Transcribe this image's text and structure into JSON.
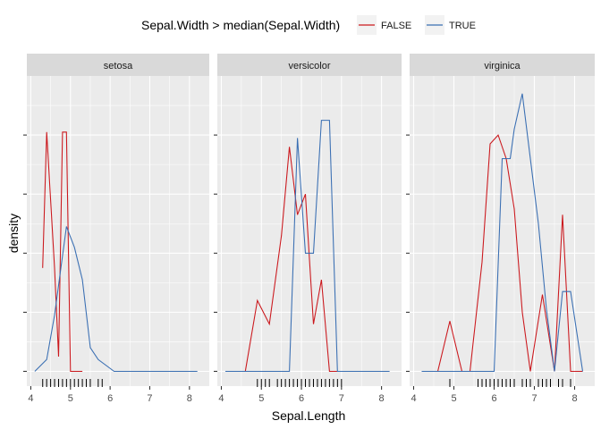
{
  "chart_data": {
    "type": "line",
    "xlabel": "Sepal.Length",
    "ylabel": "density",
    "xlim": [
      3.9,
      8.5
    ],
    "ylim": [
      -0.05,
      1.0
    ],
    "x_ticks": [
      4,
      5,
      6,
      7,
      8
    ],
    "y_ticks": [
      0,
      0.2,
      0.4,
      0.6,
      0.8
    ],
    "grid": true,
    "legend": {
      "title": "Sepal.Width > median(Sepal.Width)",
      "placement": "top",
      "entries": [
        {
          "label": "FALSE",
          "color": "#cb181d"
        },
        {
          "label": "TRUE",
          "color": "#3a6fb3"
        }
      ]
    },
    "panels": [
      {
        "strip": "setosa",
        "series": [
          {
            "name": "FALSE",
            "color": "#cb181d",
            "x": [
              4.3,
              4.4,
              4.6,
              4.7,
              4.8,
              4.9,
              5.0,
              5.1,
              5.2,
              5.3
            ],
            "y": [
              0.35,
              0.81,
              0.35,
              0.05,
              0.81,
              0.81,
              0.0,
              0.0,
              0.0,
              0.0
            ]
          },
          {
            "name": "TRUE",
            "color": "#3a6fb3",
            "x": [
              4.1,
              4.4,
              4.6,
              4.9,
              5.1,
              5.3,
              5.5,
              5.7,
              6.1,
              6.9,
              8.2
            ],
            "y": [
              0.0,
              0.04,
              0.19,
              0.49,
              0.42,
              0.31,
              0.08,
              0.04,
              0.0,
              0.0,
              0.0
            ]
          }
        ],
        "rug": [
          4.3,
          4.4,
          4.5,
          4.6,
          4.7,
          4.8,
          4.9,
          5.0,
          5.1,
          5.2,
          5.3,
          5.4,
          5.5,
          5.7,
          5.8
        ]
      },
      {
        "strip": "versicolor",
        "series": [
          {
            "name": "FALSE",
            "color": "#cb181d",
            "x": [
              4.6,
              4.9,
              5.2,
              5.5,
              5.7,
              5.9,
              6.1,
              6.3,
              6.5,
              6.7,
              6.9,
              7.1
            ],
            "y": [
              0.0,
              0.24,
              0.16,
              0.46,
              0.76,
              0.53,
              0.6,
              0.16,
              0.31,
              0.0,
              0.0,
              0.0
            ]
          },
          {
            "name": "TRUE",
            "color": "#3a6fb3",
            "x": [
              4.1,
              5.7,
              5.9,
              6.1,
              6.3,
              6.5,
              6.7,
              6.9,
              7.2,
              8.2
            ],
            "y": [
              0.0,
              0.0,
              0.79,
              0.4,
              0.4,
              0.85,
              0.85,
              0.0,
              0.0,
              0.0
            ]
          }
        ],
        "rug": [
          4.9,
          5.0,
          5.1,
          5.2,
          5.4,
          5.5,
          5.6,
          5.7,
          5.8,
          5.9,
          6.0,
          6.1,
          6.2,
          6.3,
          6.4,
          6.5,
          6.6,
          6.7,
          6.8,
          6.9,
          7.0
        ]
      },
      {
        "strip": "virginica",
        "series": [
          {
            "name": "FALSE",
            "color": "#cb181d",
            "x": [
              4.6,
              4.9,
              5.2,
              5.4,
              5.7,
              5.9,
              6.1,
              6.3,
              6.5,
              6.7,
              6.9,
              7.2,
              7.5,
              7.7,
              7.9,
              8.2
            ],
            "y": [
              0.0,
              0.17,
              0.0,
              0.0,
              0.37,
              0.77,
              0.8,
              0.72,
              0.55,
              0.2,
              0.0,
              0.26,
              0.0,
              0.53,
              0.0,
              0.0
            ],
            "note": ""
          },
          {
            "name": "TRUE",
            "color": "#3a6fb3",
            "x": [
              4.2,
              5.8,
              6.0,
              6.2,
              6.4,
              6.5,
              6.7,
              6.9,
              7.1,
              7.3,
              7.5,
              7.7,
              7.9,
              8.2
            ],
            "y": [
              0.0,
              0.0,
              0.0,
              0.72,
              0.72,
              0.82,
              0.94,
              0.72,
              0.5,
              0.21,
              0.0,
              0.27,
              0.27,
              0.0
            ]
          }
        ],
        "rug": [
          4.9,
          5.6,
          5.7,
          5.8,
          5.9,
          6.0,
          6.1,
          6.2,
          6.3,
          6.4,
          6.5,
          6.7,
          6.8,
          6.9,
          7.1,
          7.2,
          7.3,
          7.4,
          7.6,
          7.7,
          7.9
        ]
      }
    ]
  }
}
